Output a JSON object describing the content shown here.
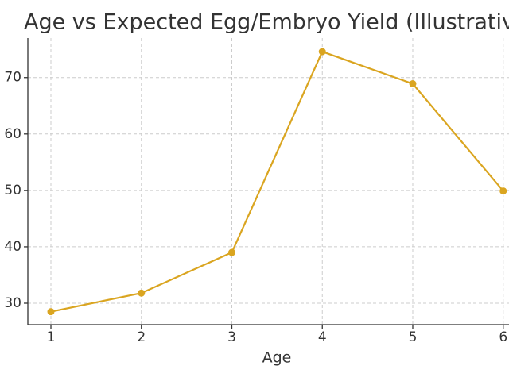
{
  "chart_data": {
    "type": "line",
    "title": "Age vs Expected Egg/Embryo Yield (Illustrativ",
    "xlabel": "Age",
    "x": [
      1,
      2,
      3,
      4,
      5,
      6
    ],
    "series": [
      {
        "color": "#daa520",
        "values": [
          28.5,
          31.8,
          39.0,
          74.6,
          68.9,
          49.9
        ]
      }
    ],
    "xlim": [
      0.745,
      6.31
    ],
    "xticks": [
      1,
      2,
      3,
      4,
      5,
      6
    ],
    "ylim": [
      26.2,
      77.0
    ],
    "yticks": [
      30,
      40,
      50,
      60,
      70
    ],
    "grid": true
  }
}
